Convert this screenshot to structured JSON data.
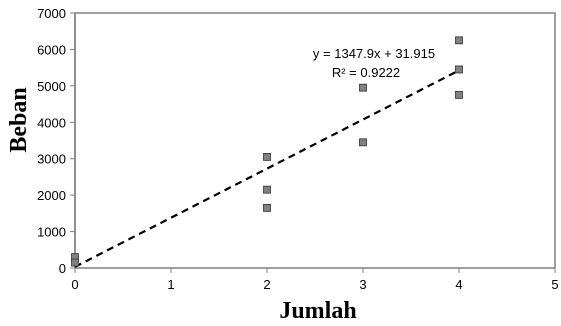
{
  "chart_data": {
    "type": "scatter",
    "title": "",
    "xlabel": "Jumlah",
    "ylabel": "Beban",
    "xlim": [
      0,
      5
    ],
    "ylim": [
      0,
      7000
    ],
    "x_ticks": [
      "0",
      "1",
      "2",
      "3",
      "4",
      "5"
    ],
    "y_ticks": [
      "0",
      "1000",
      "2000",
      "3000",
      "4000",
      "5000",
      "6000",
      "7000"
    ],
    "grid": false,
    "series": [
      {
        "points": [
          {
            "x": 0,
            "y": 300
          },
          {
            "x": 0,
            "y": 150
          },
          {
            "x": 2,
            "y": 3050
          },
          {
            "x": 2,
            "y": 2150
          },
          {
            "x": 2,
            "y": 1650
          },
          {
            "x": 3,
            "y": 4950
          },
          {
            "x": 3,
            "y": 3450
          },
          {
            "x": 4,
            "y": 6250
          },
          {
            "x": 4,
            "y": 5450
          },
          {
            "x": 4,
            "y": 4750
          }
        ],
        "marker_color": "#808080"
      }
    ],
    "trendline": {
      "style": "dashed",
      "slope": 1347.9,
      "intercept": 31.915,
      "x_range": [
        0,
        4
      ],
      "equation": "y = 1347.9x + 31.915",
      "r_squared": "R² = 0.9222"
    }
  }
}
